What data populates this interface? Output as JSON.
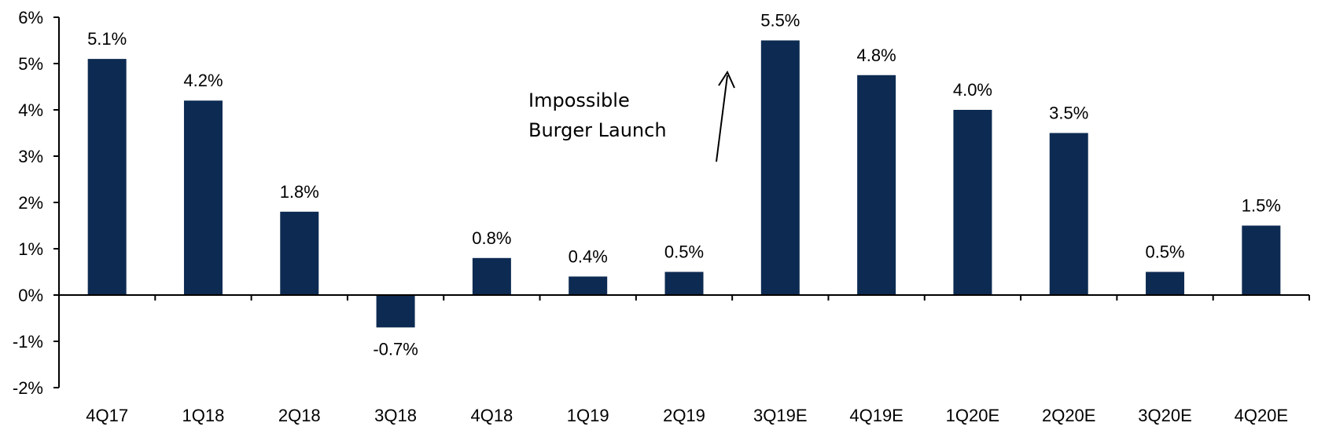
{
  "chart_data": {
    "type": "bar",
    "categories": [
      "4Q17",
      "1Q18",
      "2Q18",
      "3Q18",
      "4Q18",
      "1Q19",
      "2Q19",
      "3Q19E",
      "4Q19E",
      "1Q20E",
      "2Q20E",
      "3Q20E",
      "4Q20E"
    ],
    "values": [
      5.1,
      4.2,
      1.8,
      -0.7,
      0.8,
      0.4,
      0.5,
      5.5,
      4.75,
      4.0,
      3.5,
      0.5,
      1.5
    ],
    "data_labels": [
      "5.1%",
      "4.2%",
      "1.8%",
      "-0.7%",
      "0.8%",
      "0.4%",
      "0.5%",
      "5.5%",
      "4.8%",
      "4.0%",
      "3.5%",
      "0.5%",
      "1.5%"
    ],
    "ylim": [
      -2,
      6
    ],
    "yticks": [
      -2,
      -1,
      0,
      1,
      2,
      3,
      4,
      5,
      6
    ],
    "ytick_labels": [
      "-2%",
      "-1%",
      "0%",
      "1%",
      "2%",
      "3%",
      "4%",
      "5%",
      "6%"
    ],
    "bar_color": "#0d2b52",
    "grid": false,
    "legend": "none",
    "annotation": {
      "lines": [
        "Impossible",
        "Burger Launch"
      ],
      "arrow_points_to": "3Q19E"
    }
  }
}
